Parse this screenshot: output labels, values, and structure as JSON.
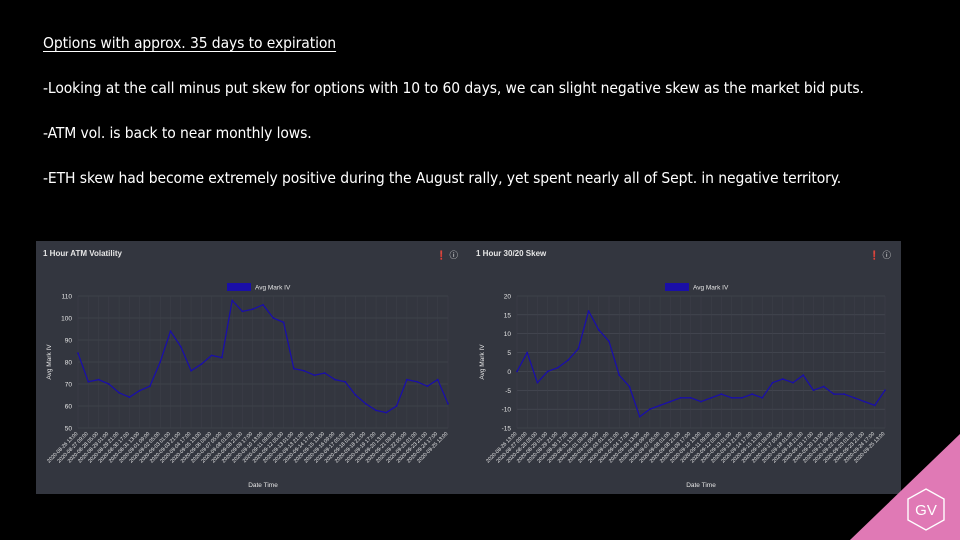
{
  "slide": {
    "heading": "Options with approx. 35 days to expiration",
    "bullets": [
      "-Looking at the call minus put skew for options with 10 to 60 days, we can slight negative skew as the market bid puts.",
      "-ATM vol. is back to near monthly lows.",
      "-ETH skew had become extremely positive during the August rally, yet spent nearly all of Sept. in negative territory."
    ],
    "logo_text": "GV",
    "colors": {
      "background": "#000000",
      "panel": "#33363f",
      "line": "#1a0fa8",
      "logo_triangle": "#e079b5"
    }
  },
  "panel_icons": [
    "info-icon",
    "help-icon"
  ],
  "chart_data": [
    {
      "type": "line",
      "title": "1 Hour ATM Volatility",
      "legend": "Avg Mark IV",
      "xlabel": "Date Time",
      "ylabel": "Avg Mark IV",
      "ylim": [
        50,
        110
      ],
      "yticks": [
        50,
        60,
        70,
        80,
        90,
        100,
        110
      ],
      "x": [
        "2020-08-26 13:00",
        "2020-08-27 09:00",
        "2020-08-28 05:00",
        "2020-08-29 01:00",
        "2020-08-29 21:00",
        "2020-08-30 17:00",
        "2020-08-31 13:00",
        "2020-09-01 09:00",
        "2020-09-02 05:00",
        "2020-09-03 01:00",
        "2020-09-03 21:00",
        "2020-09-04 17:00",
        "2020-09-05 13:00",
        "2020-09-06 09:00",
        "2020-09-07 05:00",
        "2020-09-08 01:00",
        "2020-09-08 21:00",
        "2020-09-09 17:00",
        "2020-09-10 13:00",
        "2020-09-11 09:00",
        "2020-09-12 05:00",
        "2020-09-13 01:00",
        "2020-09-13 21:00",
        "2020-09-14 17:00",
        "2020-09-15 13:00",
        "2020-09-16 09:00",
        "2020-09-17 05:00",
        "2020-09-18 01:00",
        "2020-09-18 21:00",
        "2020-09-19 17:00",
        "2020-09-20 13:00",
        "2020-09-21 09:00",
        "2020-09-22 05:00",
        "2020-09-23 01:00",
        "2020-09-23 21:00",
        "2020-09-24 17:00",
        "2020-09-25 13:00"
      ],
      "values": [
        84,
        71,
        72,
        70,
        66,
        64,
        67,
        69,
        80,
        94,
        87,
        76,
        79,
        83,
        82,
        108,
        103,
        104,
        106,
        100,
        98,
        77,
        76,
        74,
        75,
        72,
        71,
        65,
        61,
        58,
        57,
        60,
        72,
        71,
        69,
        72,
        61
      ]
    },
    {
      "type": "line",
      "title": "1 Hour 30/20 Skew",
      "legend": "Avg Mark IV",
      "xlabel": "Date Time",
      "ylabel": "Avg Mark IV",
      "ylim": [
        -15,
        20
      ],
      "yticks": [
        -15,
        -10,
        -5,
        0,
        5,
        10,
        15,
        20
      ],
      "x": [
        "2020-08-26 13:00",
        "2020-08-27 09:00",
        "2020-08-28 05:00",
        "2020-08-29 01:00",
        "2020-08-29 21:00",
        "2020-08-30 17:00",
        "2020-08-31 13:00",
        "2020-09-01 09:00",
        "2020-09-02 05:00",
        "2020-09-03 01:00",
        "2020-09-03 21:00",
        "2020-09-04 17:00",
        "2020-09-05 13:00",
        "2020-09-06 09:00",
        "2020-09-07 05:00",
        "2020-09-08 01:00",
        "2020-09-08 21:00",
        "2020-09-09 17:00",
        "2020-09-10 13:00",
        "2020-09-11 09:00",
        "2020-09-12 05:00",
        "2020-09-13 01:00",
        "2020-09-13 21:00",
        "2020-09-14 17:00",
        "2020-09-15 13:00",
        "2020-09-16 09:00",
        "2020-09-17 05:00",
        "2020-09-18 01:00",
        "2020-09-18 21:00",
        "2020-09-19 17:00",
        "2020-09-20 13:00",
        "2020-09-21 09:00",
        "2020-09-22 05:00",
        "2020-09-23 01:00",
        "2020-09-23 21:00",
        "2020-09-24 17:00",
        "2020-09-25 13:00"
      ],
      "values": [
        0,
        5,
        -3,
        0,
        1,
        3,
        6,
        16,
        11,
        8,
        -1,
        -4,
        -12,
        -10,
        -9,
        -8,
        -7,
        -7,
        -8,
        -7,
        -6,
        -7,
        -7,
        -6,
        -7,
        -3,
        -2,
        -3,
        -1,
        -5,
        -4,
        -6,
        -6,
        -7,
        -8,
        -9,
        -5
      ]
    }
  ]
}
